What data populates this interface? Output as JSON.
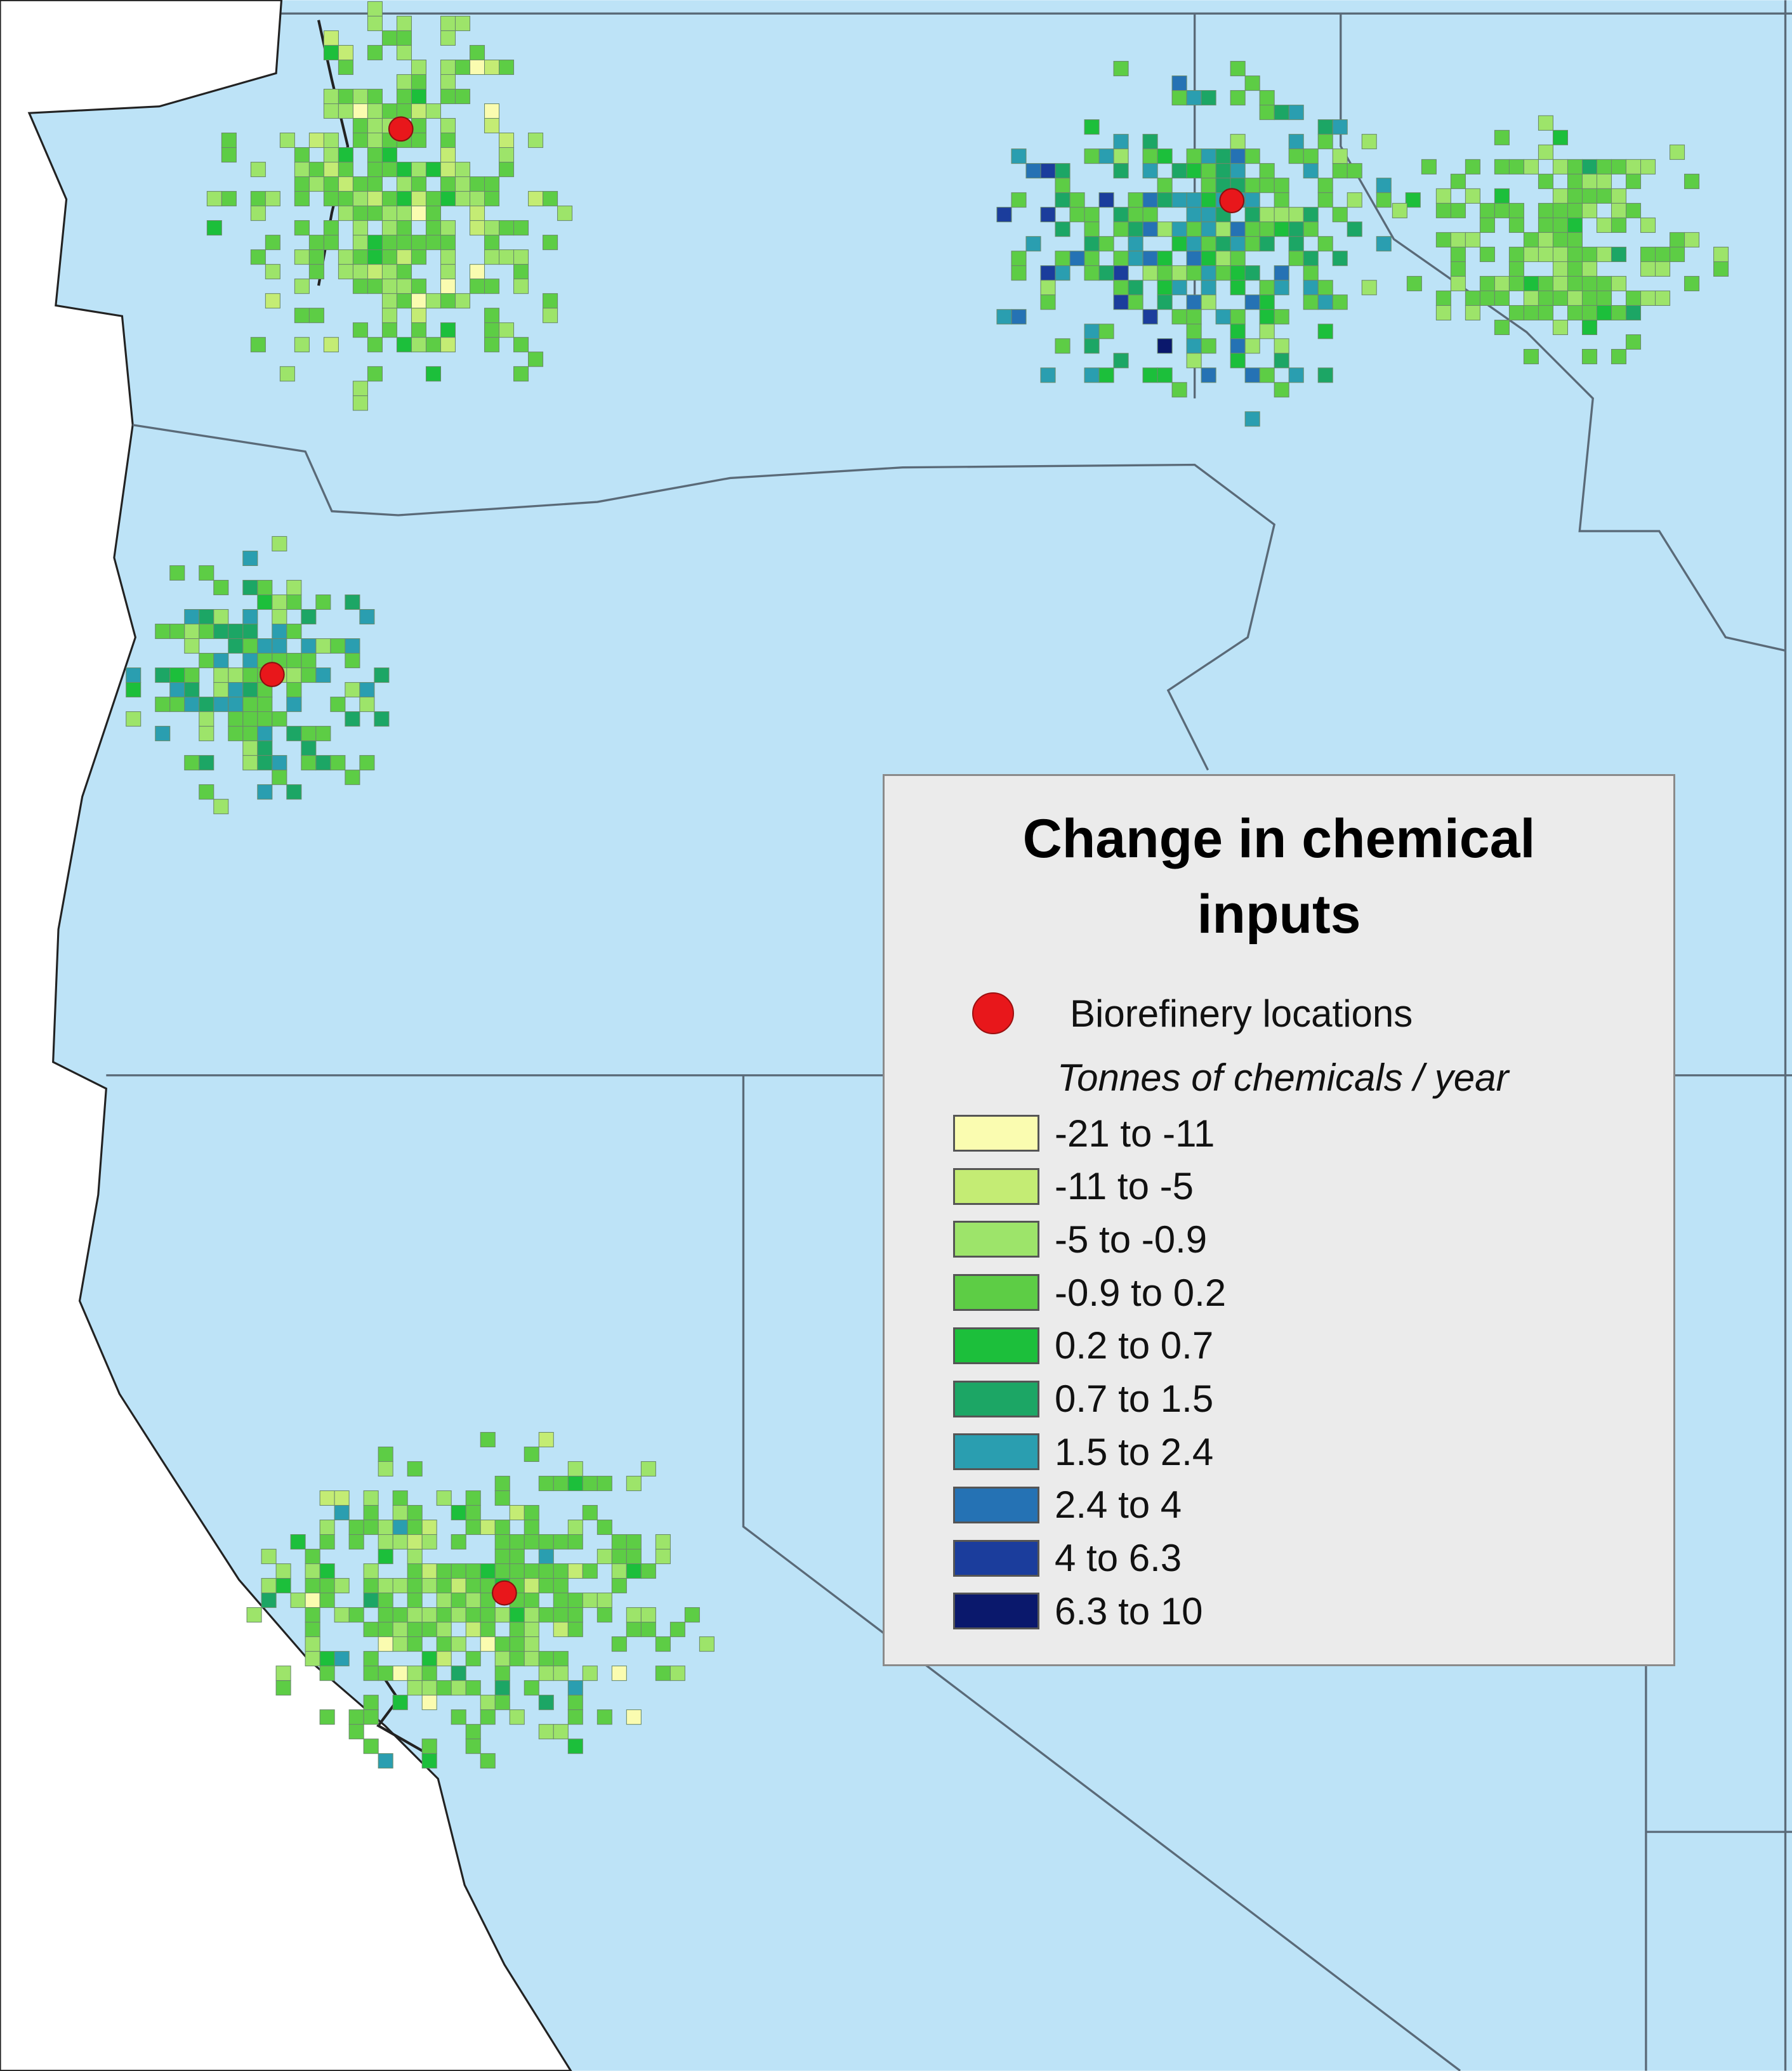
{
  "legend": {
    "title": "Change in chemical inputs",
    "marker_label": "Biorefinery locations",
    "marker_color": "#e8171b",
    "units": "Tonnes of chemicals / year",
    "items": [
      {
        "label": "-21 to -11",
        "color": "#fafcb0"
      },
      {
        "label": "-11 to -5",
        "color": "#c4ec74"
      },
      {
        "label": "-5 to -0.9",
        "color": "#9de46a"
      },
      {
        "label": "-0.9 to 0.2",
        "color": "#5dcd45"
      },
      {
        "label": "0.2 to 0.7",
        "color": "#1cbf3b"
      },
      {
        "label": "0.7 to 1.5",
        "color": "#1ca665"
      },
      {
        "label": "1.5 to 2.4",
        "color": "#2a9eb0"
      },
      {
        "label": "2.4 to 4",
        "color": "#2572b4"
      },
      {
        "label": "4 to 6.3",
        "color": "#1b3d9c"
      },
      {
        "label": "6.3 to 10",
        "color": "#0a186c"
      }
    ]
  }
}
